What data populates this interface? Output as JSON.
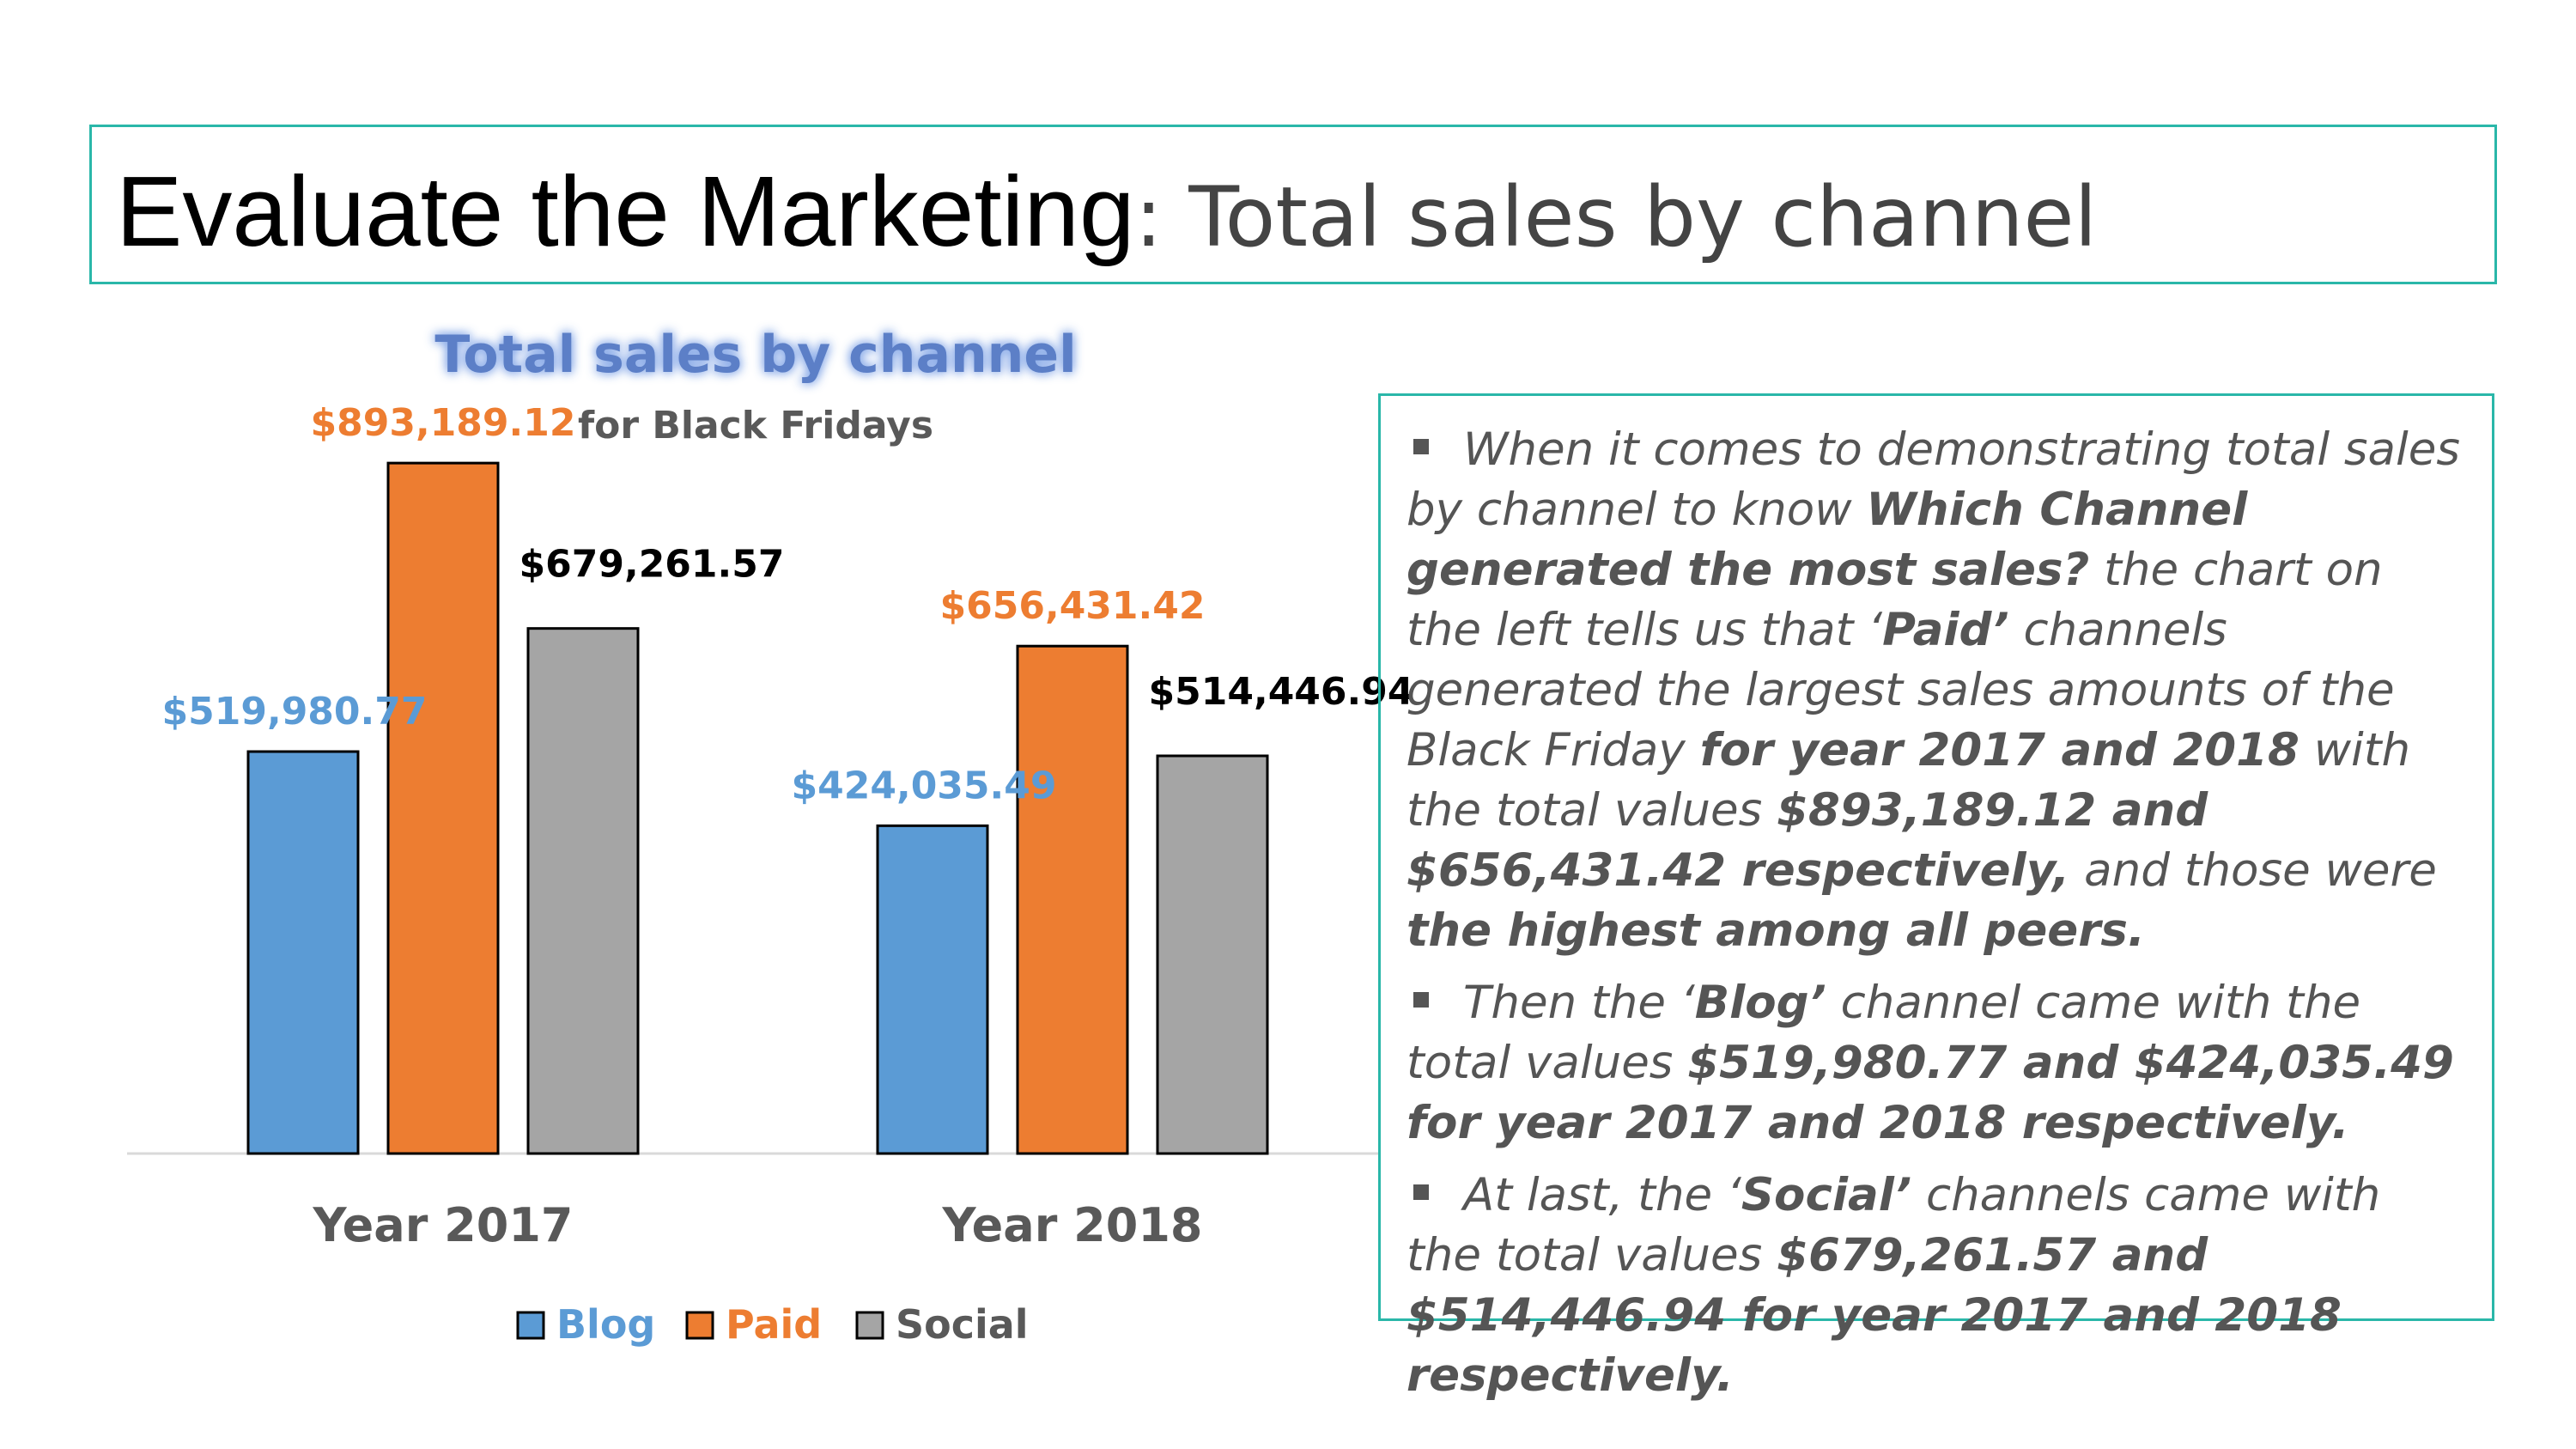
{
  "slide": {
    "title_main": "Evaluate the Marketing",
    "title_sub": ": Total sales by channel"
  },
  "chart_data": {
    "type": "bar",
    "title": "Total sales by channel",
    "subtitle": "for Black Fridays",
    "categories": [
      "Year 2017",
      "Year 2018"
    ],
    "series": [
      {
        "name": "Blog",
        "values": [
          519980.77,
          424035.49
        ],
        "labels": [
          "$519,980.77",
          "$424,035.49"
        ],
        "color": "#5b9bd5",
        "label_color": "#5b9bd5"
      },
      {
        "name": "Paid",
        "values": [
          893189.12,
          656431.42
        ],
        "labels": [
          "$893,189.12",
          "$656,431.42"
        ],
        "color": "#ed7d31",
        "label_color": "#ed7d31"
      },
      {
        "name": "Social",
        "values": [
          679261.57,
          514446.94
        ],
        "labels": [
          "$679,261.57",
          "$514,446.94"
        ],
        "color": "#a5a5a5",
        "label_color": "#000000"
      }
    ],
    "ylim": [
      0,
      1000000
    ],
    "grid": false,
    "legend": "bottom",
    "title_color": "#5b7fc7",
    "axis_label_color": "#595959"
  },
  "notes": {
    "p1": [
      {
        "t": "When it comes to demonstrating total sales by channel to know ",
        "b": false
      },
      {
        "t": "Which Channel generated the most sales?",
        "b": true
      },
      {
        "t": " the chart on the left tells us that ‘",
        "b": false
      },
      {
        "t": "Paid’",
        "b": true
      },
      {
        "t": " channels generated the largest sales amounts of the Black Friday ",
        "b": false
      },
      {
        "t": "for year 2017 and 2018",
        "b": true
      },
      {
        "t": " with the total values ",
        "b": false
      },
      {
        "t": "$893,189.12 and $656,431.42 respectively,",
        "b": true
      },
      {
        "t": " and those were ",
        "b": false
      },
      {
        "t": "the highest among all peers.",
        "b": true
      }
    ],
    "p2": [
      {
        "t": "Then the ‘",
        "b": false
      },
      {
        "t": "Blog’",
        "b": true
      },
      {
        "t": " channel came with the total values  ",
        "b": false
      },
      {
        "t": "$519,980.77 and  $424,035.49 for year 2017 and 2018 respectively.",
        "b": true
      }
    ],
    "p3": [
      {
        "t": "At last, the ‘",
        "b": false
      },
      {
        "t": "Social’",
        "b": true
      },
      {
        "t": " channels came with the total values   ",
        "b": false
      },
      {
        "t": "$679,261.57 and   $514,446.94 for year 2017 and 2018 respectively.",
        "b": true
      }
    ]
  }
}
